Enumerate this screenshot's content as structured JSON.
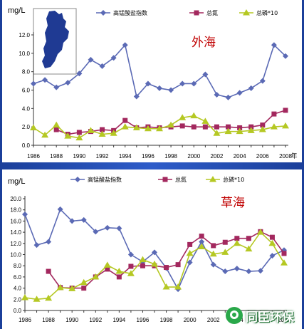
{
  "chart_data": [
    {
      "type": "line",
      "title": "外海",
      "ylabel": "mg/L",
      "x_unit": "年",
      "x": [
        1986,
        1987,
        1988,
        1989,
        1990,
        1991,
        1992,
        1993,
        1994,
        1995,
        1996,
        1997,
        1998,
        1999,
        2000,
        2001,
        2002,
        2003,
        2004,
        2005,
        2006,
        2007,
        2008
      ],
      "x_tick_labels": [
        "1986",
        "1988",
        "1990",
        "1992",
        "1994",
        "1996",
        "1998",
        "2000",
        "2002",
        "2004",
        "2006",
        "2008"
      ],
      "ylim": [
        0,
        12
      ],
      "y_ticks": [
        "0.0",
        "2.0",
        "4.0",
        "6.0",
        "8.0",
        "10.0",
        "12.0"
      ],
      "series": [
        {
          "name": "高锰酸盐指数",
          "color": "#5b6ab5",
          "marker": "diamond",
          "values": [
            6.7,
            7.1,
            6.3,
            6.8,
            7.8,
            9.3,
            8.6,
            9.5,
            10.9,
            5.3,
            6.7,
            6.2,
            6.0,
            6.7,
            6.7,
            7.7,
            5.5,
            5.2,
            5.7,
            6.2,
            7.0,
            10.9,
            9.7
          ]
        },
        {
          "name": "总氮",
          "color": "#a3285e",
          "marker": "square",
          "values": [
            null,
            null,
            1.7,
            1.2,
            1.4,
            1.5,
            1.7,
            1.6,
            2.7,
            1.9,
            2.0,
            1.9,
            2.0,
            2.1,
            2.0,
            2.0,
            2.0,
            2.0,
            1.9,
            2.0,
            2.2,
            3.4,
            3.8
          ]
        },
        {
          "name": "总磷*10",
          "color": "#b5c823",
          "marker": "triangle",
          "values": [
            1.9,
            1.1,
            2.2,
            1.0,
            0.8,
            1.6,
            1.2,
            1.3,
            2.0,
            1.9,
            1.8,
            1.8,
            2.2,
            3.0,
            3.2,
            2.6,
            1.3,
            1.5,
            1.5,
            1.6,
            1.7,
            2.0,
            2.1
          ]
        }
      ]
    },
    {
      "type": "line",
      "title": "草海",
      "ylabel": "mg/L",
      "x_unit": "年",
      "x": [
        1986,
        1987,
        1988,
        1989,
        1990,
        1991,
        1992,
        1993,
        1994,
        1995,
        1996,
        1997,
        1998,
        1999,
        2000,
        2001,
        2002,
        2003,
        2004,
        2005,
        2006,
        2007,
        2008
      ],
      "x_tick_labels": [
        "1986",
        "1988",
        "1990",
        "1992",
        "1994",
        "1996",
        "1998",
        "2000",
        "2002",
        "2004",
        "2006",
        "2008"
      ],
      "ylim": [
        0,
        20
      ],
      "y_ticks": [
        "0.0",
        "2.0",
        "4.0",
        "6.0",
        "8.0",
        "10.0",
        "12.0",
        "14.0",
        "16.0",
        "18.0",
        "20.0"
      ],
      "series": [
        {
          "name": "高锰酸盐指数",
          "color": "#5b6ab5",
          "marker": "diamond",
          "values": [
            17.2,
            11.7,
            12.3,
            18.1,
            16.0,
            16.2,
            14.1,
            14.8,
            14.7,
            10.0,
            8.7,
            10.4,
            7.6,
            3.8,
            8.6,
            12.3,
            8.2,
            7.0,
            7.5,
            7.0,
            7.1,
            9.8,
            10.8
          ]
        },
        {
          "name": "总氮",
          "color": "#a3285e",
          "marker": "square",
          "values": [
            null,
            null,
            7.0,
            4.1,
            4.0,
            4.0,
            6.0,
            7.4,
            6.0,
            7.9,
            8.0,
            8.0,
            7.7,
            8.2,
            11.8,
            13.3,
            11.6,
            12.2,
            12.9,
            12.9,
            14.1,
            13.1,
            10.2
          ]
        },
        {
          "name": "总磷*10",
          "color": "#b5c823",
          "marker": "triangle",
          "values": [
            2.3,
            2.0,
            2.2,
            4.1,
            3.9,
            5.0,
            6.0,
            8.1,
            7.0,
            6.6,
            9.1,
            8.3,
            4.2,
            4.2,
            10.2,
            11.4,
            10.1,
            10.4,
            12.0,
            11.0,
            14.0,
            12.0,
            8.5
          ]
        }
      ]
    }
  ],
  "watermark": {
    "text": "同臣环保"
  }
}
